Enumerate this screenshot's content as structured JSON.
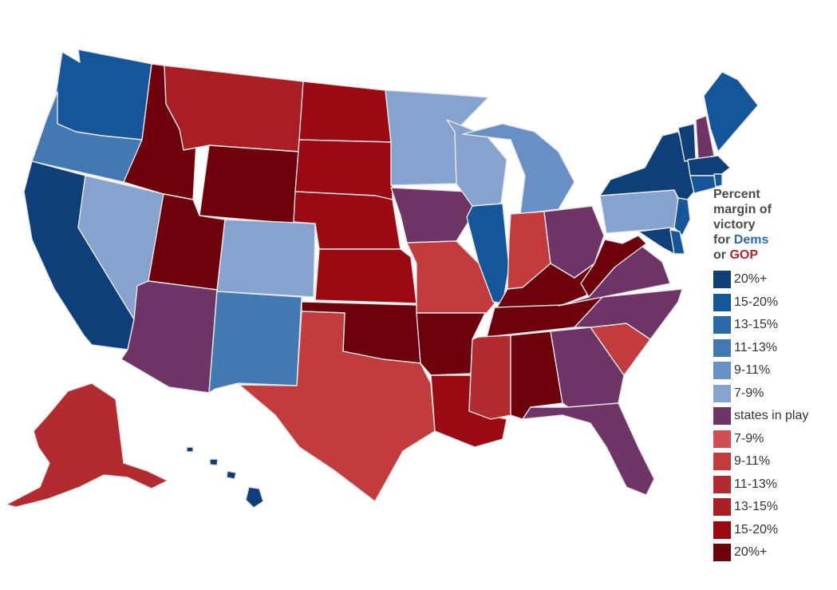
{
  "legend": {
    "title_lines": [
      "Percent",
      "margin of",
      "victory"
    ],
    "for_word": "for",
    "dem_word": "Dems",
    "or_word": "or",
    "gop_word": "GOP",
    "items": [
      {
        "label": "20%+",
        "color": "#0e3f78"
      },
      {
        "label": "15-20%",
        "color": "#15569a"
      },
      {
        "label": "13-15%",
        "color": "#2a68aa"
      },
      {
        "label": "11-13%",
        "color": "#4379b3"
      },
      {
        "label": "9-11%",
        "color": "#6990c4"
      },
      {
        "label": "7-9%",
        "color": "#86a2cf"
      },
      {
        "label": "states in play",
        "color": "#6e3466"
      },
      {
        "label": "7-9%",
        "color": "#cf4f52"
      },
      {
        "label": "9-11%",
        "color": "#c23b3d"
      },
      {
        "label": "11-13%",
        "color": "#b22b2f"
      },
      {
        "label": "13-15%",
        "color": "#a81e23"
      },
      {
        "label": "15-20%",
        "color": "#9b0a12"
      },
      {
        "label": "20%+",
        "color": "#6d000b"
      }
    ]
  },
  "map": {
    "states": [
      {
        "name": "Washington",
        "color": "#15569a"
      },
      {
        "name": "Oregon",
        "color": "#4379b3"
      },
      {
        "name": "California",
        "color": "#0e3f78"
      },
      {
        "name": "Nevada",
        "color": "#86a2cf"
      },
      {
        "name": "Idaho",
        "color": "#6d000b"
      },
      {
        "name": "Montana",
        "color": "#a81e23"
      },
      {
        "name": "Wyoming",
        "color": "#6d000b"
      },
      {
        "name": "Utah",
        "color": "#6d000b"
      },
      {
        "name": "Arizona",
        "color": "#6e3466"
      },
      {
        "name": "Colorado",
        "color": "#86a2cf"
      },
      {
        "name": "New Mexico",
        "color": "#4379b3"
      },
      {
        "name": "North Dakota",
        "color": "#9b0a12"
      },
      {
        "name": "South Dakota",
        "color": "#9b0a12"
      },
      {
        "name": "Nebraska",
        "color": "#9b0a12"
      },
      {
        "name": "Kansas",
        "color": "#9b0a12"
      },
      {
        "name": "Oklahoma",
        "color": "#6d000b"
      },
      {
        "name": "Texas",
        "color": "#c23b3d"
      },
      {
        "name": "Minnesota",
        "color": "#86a2cf"
      },
      {
        "name": "Iowa",
        "color": "#6e3466"
      },
      {
        "name": "Missouri",
        "color": "#c23b3d"
      },
      {
        "name": "Arkansas",
        "color": "#6d000b"
      },
      {
        "name": "Louisiana",
        "color": "#9b0a12"
      },
      {
        "name": "Wisconsin",
        "color": "#86a2cf"
      },
      {
        "name": "Illinois",
        "color": "#15569a"
      },
      {
        "name": "Michigan",
        "color": "#6990c4"
      },
      {
        "name": "Indiana",
        "color": "#c23b3d"
      },
      {
        "name": "Ohio",
        "color": "#6e3466"
      },
      {
        "name": "Kentucky",
        "color": "#6d000b"
      },
      {
        "name": "Tennessee",
        "color": "#6d000b"
      },
      {
        "name": "Mississippi",
        "color": "#b22b2f"
      },
      {
        "name": "Alabama",
        "color": "#6d000b"
      },
      {
        "name": "Georgia",
        "color": "#6e3466"
      },
      {
        "name": "Florida",
        "color": "#6e3466"
      },
      {
        "name": "South Carolina",
        "color": "#c23b3d"
      },
      {
        "name": "North Carolina",
        "color": "#6e3466"
      },
      {
        "name": "Virginia",
        "color": "#6e3466"
      },
      {
        "name": "West Virginia",
        "color": "#6d000b"
      },
      {
        "name": "Pennsylvania",
        "color": "#86a2cf"
      },
      {
        "name": "New York",
        "color": "#0e3f78"
      },
      {
        "name": "New Jersey",
        "color": "#15569a"
      },
      {
        "name": "Maryland",
        "color": "#0e3f78"
      },
      {
        "name": "Delaware",
        "color": "#15569a"
      },
      {
        "name": "Vermont",
        "color": "#0e3f78"
      },
      {
        "name": "New Hampshire",
        "color": "#6e3466"
      },
      {
        "name": "Maine",
        "color": "#15569a"
      },
      {
        "name": "Massachusetts",
        "color": "#0e3f78"
      },
      {
        "name": "Connecticut",
        "color": "#15569a"
      },
      {
        "name": "Rhode Island",
        "color": "#15569a"
      },
      {
        "name": "Alaska",
        "color": "#b22b2f"
      },
      {
        "name": "Hawaii",
        "color": "#0e3f78"
      }
    ]
  }
}
